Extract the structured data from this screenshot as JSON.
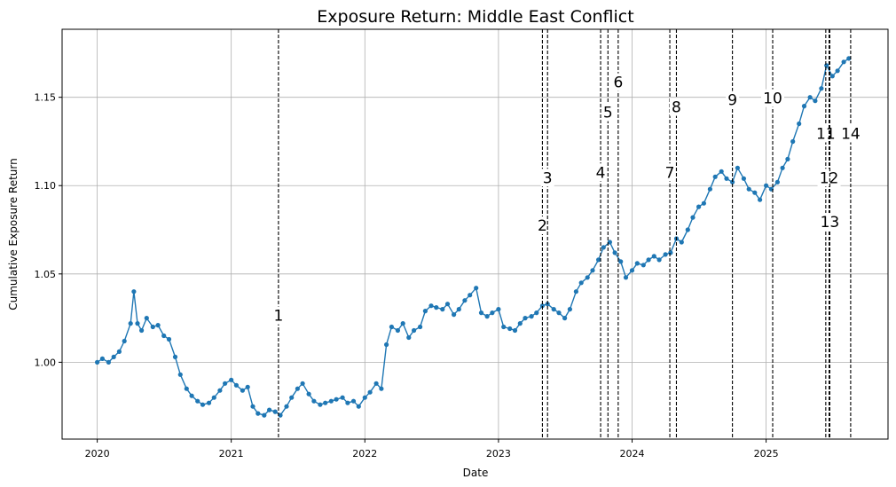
{
  "chart_data": {
    "type": "line",
    "title": "Exposure Return: Middle East Conflict",
    "xlabel": "Date",
    "ylabel": "Cumulative Exposure Return",
    "xlim": [
      "2019-09-27",
      "2025-11-30"
    ],
    "ylim": [
      0.9565,
      1.1885
    ],
    "x_ticks": [
      "2020-01-01",
      "2021-01-01",
      "2022-01-01",
      "2023-01-01",
      "2024-01-01",
      "2025-01-01"
    ],
    "x_tick_labels": [
      "2020",
      "2021",
      "2022",
      "2023",
      "2024",
      "2025"
    ],
    "y_ticks": [
      1.0,
      1.05,
      1.1,
      1.15
    ],
    "y_tick_labels": [
      "1.00",
      "1.05",
      "1.10",
      "1.15"
    ],
    "grid": true,
    "series_color": "#1f77b4",
    "series": [
      {
        "x": [
          "2020-01-01",
          "2020-01-15",
          "2020-02-01",
          "2020-02-15",
          "2020-03-01",
          "2020-03-15",
          "2020-04-01",
          "2020-04-10",
          "2020-04-20",
          "2020-05-01",
          "2020-05-15",
          "2020-06-01",
          "2020-06-15",
          "2020-07-01",
          "2020-07-15",
          "2020-08-01",
          "2020-08-15",
          "2020-09-01",
          "2020-09-15",
          "2020-10-01",
          "2020-10-15",
          "2020-11-01",
          "2020-11-15",
          "2020-12-01",
          "2020-12-15",
          "2021-01-01",
          "2021-01-15",
          "2021-02-01",
          "2021-02-15",
          "2021-03-01",
          "2021-03-15",
          "2021-04-01",
          "2021-04-15",
          "2021-05-01",
          "2021-05-15",
          "2021-06-01",
          "2021-06-15",
          "2021-07-01",
          "2021-07-15",
          "2021-08-01",
          "2021-08-15",
          "2021-09-01",
          "2021-09-15",
          "2021-10-01",
          "2021-10-15",
          "2021-11-01",
          "2021-11-15",
          "2021-12-01",
          "2021-12-15",
          "2022-01-01",
          "2022-01-15",
          "2022-02-01",
          "2022-02-15",
          "2022-03-01",
          "2022-03-15",
          "2022-04-01",
          "2022-04-15",
          "2022-05-01",
          "2022-05-15",
          "2022-06-01",
          "2022-06-15",
          "2022-07-01",
          "2022-07-15",
          "2022-08-01",
          "2022-08-15",
          "2022-09-01",
          "2022-09-15",
          "2022-10-01",
          "2022-10-15",
          "2022-11-01",
          "2022-11-15",
          "2022-12-01",
          "2022-12-15",
          "2023-01-01",
          "2023-01-15",
          "2023-02-01",
          "2023-02-15",
          "2023-03-01",
          "2023-03-15",
          "2023-04-01",
          "2023-04-15",
          "2023-05-01",
          "2023-05-15",
          "2023-06-01",
          "2023-06-15",
          "2023-07-01",
          "2023-07-15",
          "2023-08-01",
          "2023-08-15",
          "2023-09-01",
          "2023-09-15",
          "2023-10-01",
          "2023-10-15",
          "2023-11-01",
          "2023-11-15",
          "2023-12-01",
          "2023-12-15",
          "2024-01-01",
          "2024-01-15",
          "2024-02-01",
          "2024-02-15",
          "2024-03-01",
          "2024-03-15",
          "2024-04-01",
          "2024-04-15",
          "2024-05-01",
          "2024-05-15",
          "2024-06-01",
          "2024-06-15",
          "2024-07-01",
          "2024-07-15",
          "2024-08-01",
          "2024-08-15",
          "2024-09-01",
          "2024-09-15",
          "2024-10-01",
          "2024-10-15",
          "2024-11-01",
          "2024-11-15",
          "2024-12-01",
          "2024-12-15",
          "2025-01-01",
          "2025-01-15",
          "2025-02-01",
          "2025-02-15",
          "2025-03-01",
          "2025-03-15",
          "2025-04-01",
          "2025-04-15",
          "2025-05-01",
          "2025-05-15",
          "2025-06-01",
          "2025-06-15",
          "2025-07-01",
          "2025-07-15",
          "2025-08-01",
          "2025-08-15"
        ],
        "values": [
          1.0,
          1.002,
          1.0,
          1.003,
          1.006,
          1.012,
          1.022,
          1.04,
          1.022,
          1.018,
          1.025,
          1.02,
          1.021,
          1.015,
          1.013,
          1.003,
          0.993,
          0.985,
          0.981,
          0.978,
          0.976,
          0.977,
          0.98,
          0.984,
          0.988,
          0.99,
          0.987,
          0.984,
          0.986,
          0.975,
          0.971,
          0.97,
          0.973,
          0.972,
          0.97,
          0.975,
          0.98,
          0.985,
          0.988,
          0.982,
          0.978,
          0.976,
          0.977,
          0.978,
          0.979,
          0.98,
          0.977,
          0.978,
          0.975,
          0.98,
          0.983,
          0.988,
          0.985,
          1.01,
          1.02,
          1.018,
          1.022,
          1.014,
          1.018,
          1.02,
          1.029,
          1.032,
          1.031,
          1.03,
          1.033,
          1.027,
          1.03,
          1.035,
          1.038,
          1.042,
          1.028,
          1.026,
          1.028,
          1.03,
          1.02,
          1.019,
          1.018,
          1.022,
          1.025,
          1.026,
          1.028,
          1.032,
          1.033,
          1.03,
          1.028,
          1.025,
          1.03,
          1.04,
          1.045,
          1.048,
          1.052,
          1.058,
          1.065,
          1.068,
          1.062,
          1.057,
          1.048,
          1.052,
          1.056,
          1.055,
          1.058,
          1.06,
          1.058,
          1.061,
          1.062,
          1.07,
          1.068,
          1.075,
          1.082,
          1.088,
          1.09,
          1.098,
          1.105,
          1.108,
          1.104,
          1.102,
          1.11,
          1.104,
          1.098,
          1.096,
          1.092,
          1.1,
          1.098,
          1.102,
          1.11,
          1.115,
          1.125,
          1.135,
          1.145,
          1.15,
          1.148,
          1.155,
          1.168,
          1.162,
          1.165,
          1.17,
          1.172
        ]
      }
    ],
    "events": [
      {
        "label": "1",
        "date": "2021-05-10",
        "label_y": 1.0245
      },
      {
        "label": "2",
        "date": "2023-05-01",
        "label_y": 1.0755
      },
      {
        "label": "3",
        "date": "2023-05-15",
        "label_y": 1.1025
      },
      {
        "label": "4",
        "date": "2023-10-07",
        "label_y": 1.1055
      },
      {
        "label": "5",
        "date": "2023-10-27",
        "label_y": 1.1395
      },
      {
        "label": "6",
        "date": "2023-11-24",
        "label_y": 1.1565
      },
      {
        "label": "7",
        "date": "2024-04-13",
        "label_y": 1.1055
      },
      {
        "label": "8",
        "date": "2024-05-01",
        "label_y": 1.1425
      },
      {
        "label": "9",
        "date": "2024-10-01",
        "label_y": 1.1465
      },
      {
        "label": "10",
        "date": "2025-01-19",
        "label_y": 1.1475
      },
      {
        "label": "11",
        "date": "2025-06-13",
        "label_y": 1.1275
      },
      {
        "label": "12",
        "date": "2025-06-22",
        "label_y": 1.1025
      },
      {
        "label": "13",
        "date": "2025-06-24",
        "label_y": 1.0775
      },
      {
        "label": "14",
        "date": "2025-08-20",
        "label_y": 1.1275
      }
    ]
  }
}
